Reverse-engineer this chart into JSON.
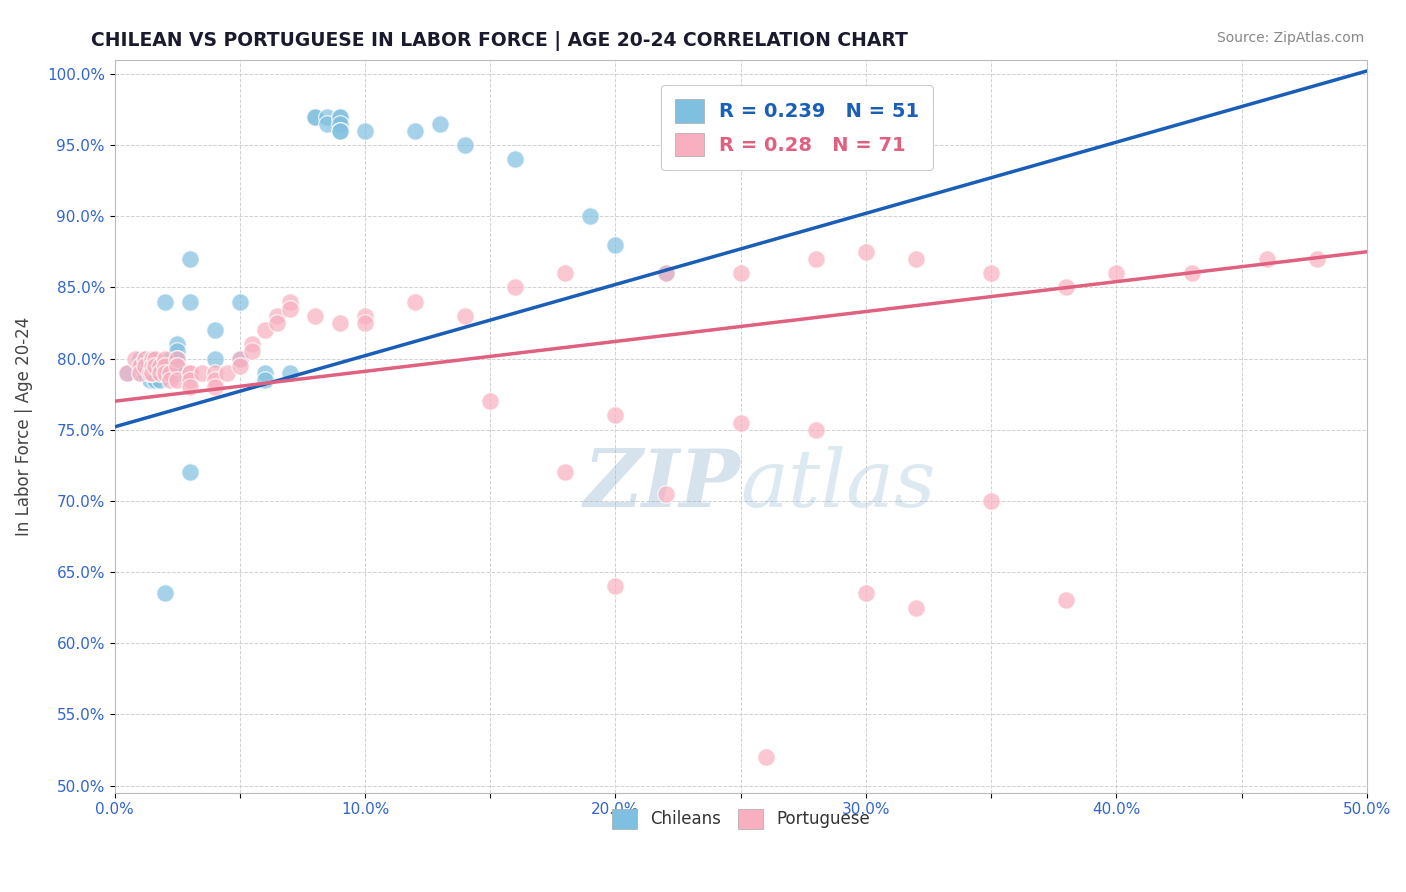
{
  "title": "CHILEAN VS PORTUGUESE IN LABOR FORCE | AGE 20-24 CORRELATION CHART",
  "source_text": "Source: ZipAtlas.com",
  "ylabel": "In Labor Force | Age 20-24",
  "xlim": [
    0.0,
    0.5
  ],
  "ylim": [
    0.495,
    1.01
  ],
  "xticks": [
    0.0,
    0.05,
    0.1,
    0.15,
    0.2,
    0.25,
    0.3,
    0.35,
    0.4,
    0.45,
    0.5
  ],
  "yticks": [
    0.5,
    0.55,
    0.6,
    0.65,
    0.7,
    0.75,
    0.8,
    0.85,
    0.9,
    0.95,
    1.0
  ],
  "ytick_labels": [
    "50.0%",
    "55.0%",
    "60.0%",
    "65.0%",
    "70.0%",
    "75.0%",
    "80.0%",
    "85.0%",
    "90.0%",
    "95.0%",
    "100.0%"
  ],
  "xtick_labels": [
    "0.0%",
    "",
    "10.0%",
    "",
    "20.0%",
    "",
    "30.0%",
    "",
    "40.0%",
    "",
    "50.0%"
  ],
  "blue_R": 0.239,
  "blue_N": 51,
  "pink_R": 0.28,
  "pink_N": 71,
  "blue_color": "#7fbfdf",
  "pink_color": "#f8afc0",
  "blue_line_color": "#1a5eb8",
  "pink_line_color": "#e06080",
  "watermark_color": "#b8d0e8",
  "blue_line_x1": 0.0,
  "blue_line_y1": 0.752,
  "blue_line_x2": 0.5,
  "blue_line_y2": 1.002,
  "pink_line_x1": 0.0,
  "pink_line_y1": 0.77,
  "pink_line_x2": 0.5,
  "pink_line_y2": 0.875,
  "blue_scatter_x": [
    0.005,
    0.01,
    0.01,
    0.012,
    0.012,
    0.012,
    0.014,
    0.014,
    0.014,
    0.014,
    0.016,
    0.016,
    0.018,
    0.018,
    0.02,
    0.02,
    0.022,
    0.022,
    0.025,
    0.025,
    0.025,
    0.025,
    0.025,
    0.03,
    0.03,
    0.04,
    0.04,
    0.05,
    0.05,
    0.06,
    0.06,
    0.07,
    0.08,
    0.08,
    0.085,
    0.085,
    0.09,
    0.09,
    0.09,
    0.09,
    0.09,
    0.1,
    0.12,
    0.13,
    0.14,
    0.16,
    0.19,
    0.2,
    0.22,
    0.02,
    0.03
  ],
  "blue_scatter_y": [
    0.79,
    0.8,
    0.79,
    0.8,
    0.795,
    0.79,
    0.8,
    0.795,
    0.79,
    0.785,
    0.795,
    0.785,
    0.79,
    0.785,
    0.84,
    0.79,
    0.8,
    0.795,
    0.81,
    0.805,
    0.8,
    0.795,
    0.79,
    0.87,
    0.84,
    0.82,
    0.8,
    0.84,
    0.8,
    0.79,
    0.785,
    0.79,
    0.97,
    0.97,
    0.97,
    0.965,
    0.97,
    0.97,
    0.965,
    0.96,
    0.96,
    0.96,
    0.96,
    0.965,
    0.95,
    0.94,
    0.9,
    0.88,
    0.86,
    0.635,
    0.72
  ],
  "pink_scatter_x": [
    0.005,
    0.008,
    0.01,
    0.01,
    0.012,
    0.012,
    0.014,
    0.015,
    0.015,
    0.015,
    0.016,
    0.016,
    0.018,
    0.018,
    0.02,
    0.02,
    0.02,
    0.022,
    0.022,
    0.025,
    0.025,
    0.025,
    0.03,
    0.03,
    0.03,
    0.03,
    0.035,
    0.04,
    0.04,
    0.04,
    0.045,
    0.05,
    0.05,
    0.055,
    0.055,
    0.06,
    0.065,
    0.065,
    0.07,
    0.07,
    0.08,
    0.09,
    0.1,
    0.1,
    0.12,
    0.14,
    0.16,
    0.18,
    0.22,
    0.25,
    0.28,
    0.3,
    0.32,
    0.35,
    0.38,
    0.4,
    0.43,
    0.46,
    0.48,
    0.15,
    0.2,
    0.25,
    0.28,
    0.18,
    0.22,
    0.2,
    0.3,
    0.35,
    0.38,
    0.32,
    0.26
  ],
  "pink_scatter_y": [
    0.79,
    0.8,
    0.795,
    0.79,
    0.8,
    0.795,
    0.79,
    0.8,
    0.795,
    0.79,
    0.8,
    0.795,
    0.795,
    0.79,
    0.8,
    0.795,
    0.79,
    0.79,
    0.785,
    0.8,
    0.795,
    0.785,
    0.79,
    0.79,
    0.785,
    0.78,
    0.79,
    0.79,
    0.785,
    0.78,
    0.79,
    0.8,
    0.795,
    0.81,
    0.805,
    0.82,
    0.83,
    0.825,
    0.84,
    0.835,
    0.83,
    0.825,
    0.83,
    0.825,
    0.84,
    0.83,
    0.85,
    0.86,
    0.86,
    0.86,
    0.87,
    0.875,
    0.87,
    0.86,
    0.85,
    0.86,
    0.86,
    0.87,
    0.87,
    0.77,
    0.76,
    0.755,
    0.75,
    0.72,
    0.705,
    0.64,
    0.635,
    0.7,
    0.63,
    0.625,
    0.52
  ]
}
